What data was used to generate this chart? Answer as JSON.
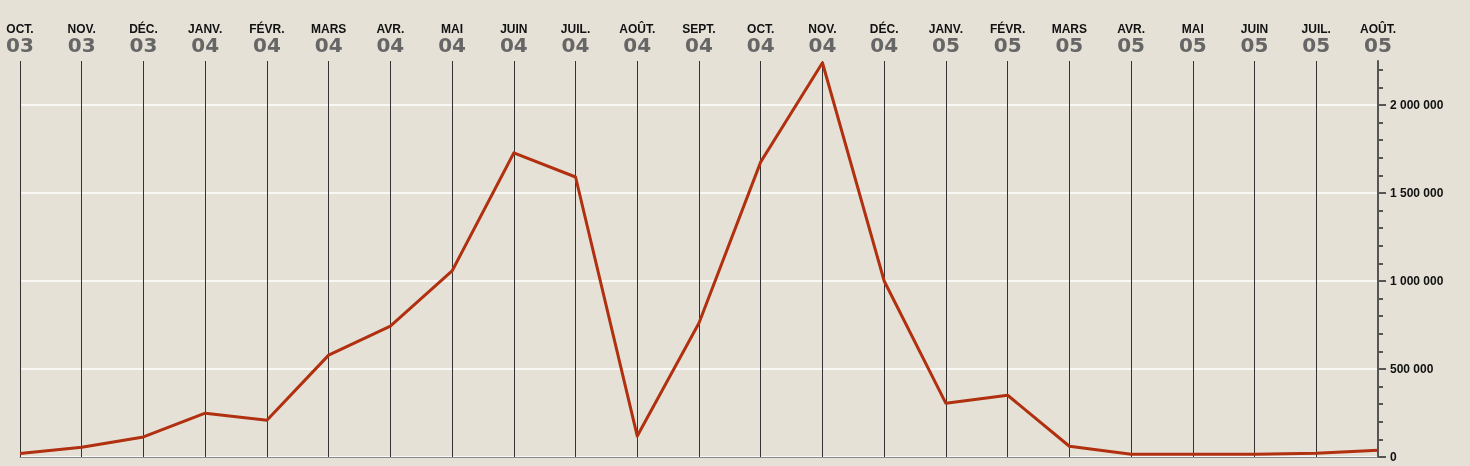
{
  "chart_data": {
    "type": "line",
    "categories": [
      "OCT.\n03",
      "NOV.\n03",
      "DÉC.\n03",
      "JANV.\n04",
      "FÉVR.\n04",
      "MARS\n04",
      "AVR.\n04",
      "MAI\n04",
      "JUIN\n04",
      "JUIL.\n04",
      "AOÛT.\n04",
      "SEPT.\n04",
      "OCT.\n04",
      "NOV.\n04",
      "DÉC.\n04",
      "JANV.\n05",
      "FÉVR.\n05",
      "MARS\n05",
      "AVR.\n05",
      "MAI\n05",
      "JUIN\n05",
      "JUIL.\n05",
      "AOÛT.\n05"
    ],
    "series": [
      {
        "color": "#b03010",
        "values": [
          20000,
          55000,
          114000,
          249000,
          209000,
          579000,
          744000,
          1057000,
          1728000,
          1591000,
          119000,
          761000,
          1677000,
          2240000,
          1000000,
          305000,
          351000,
          61000,
          15000,
          15000,
          15000,
          21000,
          38000
        ]
      }
    ],
    "ylim": [
      0,
      2250000
    ],
    "yticks": [
      {
        "value": 0,
        "label": "0"
      },
      {
        "value": 500000,
        "label": "500 000"
      },
      {
        "value": 1000000,
        "label": "1 000 000"
      },
      {
        "value": 1500000,
        "label": "1 500 000"
      },
      {
        "value": 2000000,
        "label": "2 000 000"
      }
    ],
    "grid": true,
    "marker": "none",
    "line_style": "solid"
  }
}
